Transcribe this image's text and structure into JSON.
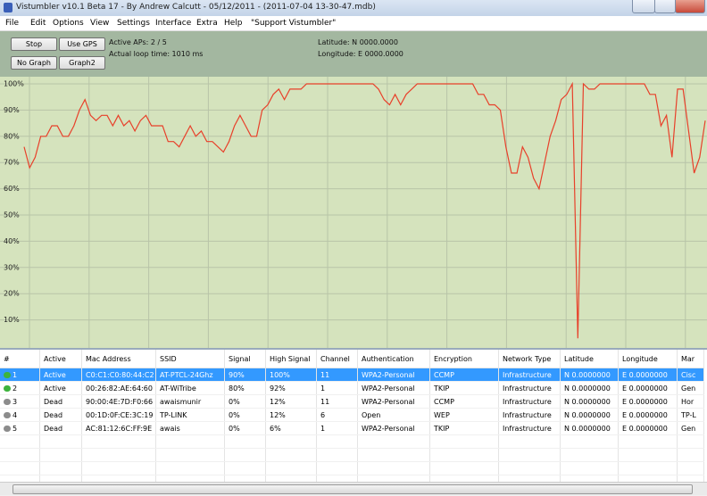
{
  "window": {
    "title": "Vistumbler v10.1 Beta 17 - By Andrew Calcutt - 05/12/2011 - (2011-07-04 13-30-47.mdb)"
  },
  "menu": [
    "File",
    "Edit",
    "Options",
    "View",
    "Settings",
    "Interface",
    "Extra",
    "Help",
    "\"Support Vistumbler\""
  ],
  "toolbar": {
    "buttons": [
      "Stop",
      "Use GPS",
      "No Graph",
      "Graph2"
    ],
    "status": [
      "Active APs: 2 / 5",
      "Actual loop time: 1010 ms"
    ],
    "gps": [
      "Latitude: N 0000.0000",
      "Longitude: E 0000.0000"
    ]
  },
  "graph": {
    "type": "line",
    "color": "#e8402a",
    "ylim": [
      0,
      100
    ],
    "yticks": [
      {
        "value": 10,
        "label": "10%"
      },
      {
        "value": 20,
        "label": "20%"
      },
      {
        "value": 30,
        "label": "30%"
      },
      {
        "value": 40,
        "label": "40%"
      },
      {
        "value": 50,
        "label": "50%"
      },
      {
        "value": 60,
        "label": "60%"
      },
      {
        "value": 70,
        "label": "70%"
      },
      {
        "value": 80,
        "label": "80%"
      },
      {
        "value": 90,
        "label": "90%"
      },
      {
        "value": 100,
        "label": "100%"
      }
    ],
    "values": [
      76,
      68,
      72,
      80,
      80,
      84,
      84,
      80,
      80,
      84,
      90,
      94,
      88,
      86,
      88,
      88,
      84,
      88,
      84,
      86,
      82,
      86,
      88,
      84,
      84,
      84,
      78,
      78,
      76,
      80,
      84,
      80,
      82,
      78,
      78,
      76,
      74,
      78,
      84,
      88,
      84,
      80,
      80,
      90,
      92,
      96,
      98,
      94,
      98,
      98,
      98,
      100,
      100,
      100,
      100,
      100,
      100,
      100,
      100,
      100,
      100,
      100,
      100,
      100,
      98,
      94,
      92,
      96,
      92,
      96,
      98,
      100,
      100,
      100,
      100,
      100,
      100,
      100,
      100,
      100,
      100,
      100,
      96,
      96,
      92,
      92,
      90,
      76,
      66,
      66,
      76,
      72,
      64,
      60,
      70,
      80,
      86,
      94,
      96,
      100,
      3,
      100,
      98,
      98,
      100,
      100,
      100,
      100,
      100,
      100,
      100,
      100,
      100,
      96,
      96,
      84,
      88,
      72,
      98,
      98,
      82,
      66,
      72,
      86
    ]
  },
  "table": {
    "columns": [
      "#",
      "Active",
      "Mac Address",
      "SSID",
      "Signal",
      "High Signal",
      "Channel",
      "Authentication",
      "Encryption",
      "Network Type",
      "Latitude",
      "Longitude",
      "Mar"
    ],
    "rows": [
      [
        "1",
        "Active",
        "C0:C1:C0:80:44:C2",
        "AT-PTCL-24Ghz",
        "90%",
        "100%",
        "11",
        "WPA2-Personal",
        "CCMP",
        "Infrastructure",
        "N 0.0000000",
        "E 0.0000000",
        "Cisc"
      ],
      [
        "2",
        "Active",
        "00:26:82:AE:64:60",
        "AT-WiTribe",
        "80%",
        "92%",
        "1",
        "WPA2-Personal",
        "TKIP",
        "Infrastructure",
        "N 0.0000000",
        "E 0.0000000",
        "Gen"
      ],
      [
        "3",
        "Dead",
        "90:00:4E:7D:F0:66",
        "awaismunir",
        "0%",
        "12%",
        "11",
        "WPA2-Personal",
        "CCMP",
        "Infrastructure",
        "N 0.0000000",
        "E 0.0000000",
        "Hor"
      ],
      [
        "4",
        "Dead",
        "00:1D:0F:CE:3C:19",
        "TP-LINK",
        "0%",
        "12%",
        "6",
        "Open",
        "WEP",
        "Infrastructure",
        "N 0.0000000",
        "E 0.0000000",
        "TP-L"
      ],
      [
        "5",
        "Dead",
        "AC:81:12:6C:FF:9E",
        "awais",
        "0%",
        "6%",
        "1",
        "WPA2-Personal",
        "TKIP",
        "Infrastructure",
        "N 0.0000000",
        "E 0.0000000",
        "Gen"
      ]
    ]
  }
}
